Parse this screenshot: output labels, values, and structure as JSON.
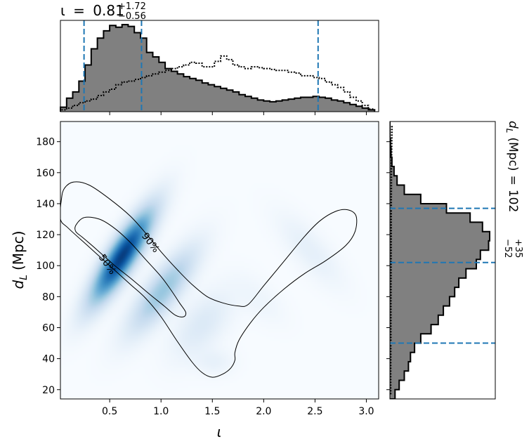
{
  "chart_data": {
    "type": "corner",
    "parameters": [
      {
        "name": "iota",
        "xlabel": "ι",
        "range": [
          0.02,
          3.12
        ]
      },
      {
        "name": "dL",
        "ylabel": "d",
        "ylabel_sub": "L",
        "ylabel_unit": "(Mpc)",
        "range": [
          14,
          193
        ]
      }
    ],
    "top_title": {
      "symbol": "ι",
      "eq": "=",
      "median": "0.81",
      "plus": "+1.72",
      "minus": "−0.56"
    },
    "right_title": {
      "symbol": "d",
      "sub": "L",
      "unit": "(Mpc)",
      "eq": "=",
      "median": "102",
      "plus": "+35",
      "minus": "−52"
    },
    "joint": {
      "type": "heatmap",
      "colormap": "Blues",
      "x_ticks": [
        "0.5",
        "1.0",
        "1.5",
        "2.0",
        "2.5",
        "3.0"
      ],
      "x_tick_values": [
        0.5,
        1.0,
        1.5,
        2.0,
        2.5,
        3.0
      ],
      "y_ticks": [
        "20",
        "40",
        "60",
        "80",
        "100",
        "120",
        "140",
        "160",
        "180"
      ],
      "y_tick_values": [
        20,
        40,
        60,
        80,
        100,
        120,
        140,
        160,
        180
      ],
      "contours": [
        {
          "label": "50%",
          "label_pos": [
            0.48,
            101
          ],
          "label_angle": 55,
          "points": [
            [
              0.17,
              126
            ],
            [
              0.25,
              131
            ],
            [
              0.4,
              130
            ],
            [
              0.55,
              124
            ],
            [
              0.7,
              115
            ],
            [
              0.85,
              104
            ],
            [
              1.0,
              93
            ],
            [
              1.1,
              84
            ],
            [
              1.18,
              76
            ],
            [
              1.24,
              70
            ],
            [
              1.22,
              67
            ],
            [
              1.14,
              68
            ],
            [
              1.03,
              74
            ],
            [
              0.88,
              82
            ],
            [
              0.72,
              91
            ],
            [
              0.55,
              100
            ],
            [
              0.38,
              110
            ],
            [
              0.24,
              118
            ],
            [
              0.17,
              122
            ]
          ]
        },
        {
          "label": "90%",
          "label_pos": [
            0.9,
            115
          ],
          "label_angle": 52,
          "points": [
            [
              0.03,
              143
            ],
            [
              0.06,
              150
            ],
            [
              0.15,
              154
            ],
            [
              0.3,
              152
            ],
            [
              0.5,
              143
            ],
            [
              0.7,
              132
            ],
            [
              0.85,
              121
            ],
            [
              1.0,
              109
            ],
            [
              1.15,
              98
            ],
            [
              1.3,
              88
            ],
            [
              1.45,
              80
            ],
            [
              1.6,
              76
            ],
            [
              1.75,
              74
            ],
            [
              1.85,
              75
            ],
            [
              2.0,
              87
            ],
            [
              2.2,
              103
            ],
            [
              2.4,
              119
            ],
            [
              2.55,
              129
            ],
            [
              2.7,
              135
            ],
            [
              2.82,
              136
            ],
            [
              2.9,
              132
            ],
            [
              2.89,
              122
            ],
            [
              2.8,
              113
            ],
            [
              2.6,
              103
            ],
            [
              2.4,
              95
            ],
            [
              2.2,
              85
            ],
            [
              2.0,
              73
            ],
            [
              1.87,
              63
            ],
            [
              1.76,
              52
            ],
            [
              1.72,
              44
            ],
            [
              1.72,
              39
            ],
            [
              1.68,
              34
            ],
            [
              1.6,
              30
            ],
            [
              1.5,
              28
            ],
            [
              1.4,
              31
            ],
            [
              1.3,
              38
            ],
            [
              1.15,
              52
            ],
            [
              1.0,
              67
            ],
            [
              0.85,
              79
            ],
            [
              0.7,
              88
            ],
            [
              0.5,
              100
            ],
            [
              0.3,
              112
            ],
            [
              0.1,
              124
            ],
            [
              0.02,
              130
            ]
          ]
        }
      ],
      "density_components": [
        {
          "weight": 1.0,
          "mean": [
            0.62,
            106
          ],
          "sd_major": 0.33,
          "sd_minor": 0.085,
          "angle_deg": -57
        },
        {
          "weight": 0.35,
          "mean": [
            1.02,
            84
          ],
          "sd_major": 0.32,
          "sd_minor": 0.1,
          "angle_deg": -52
        },
        {
          "weight": 0.1,
          "mean": [
            1.4,
            62
          ],
          "sd_major": 0.25,
          "sd_minor": 0.13,
          "angle_deg": -50
        },
        {
          "weight": 0.05,
          "mean": [
            1.52,
            38
          ],
          "sd_major": 0.12,
          "sd_minor": 0.08,
          "angle_deg": 0
        },
        {
          "weight": 0.06,
          "mean": [
            2.45,
            110
          ],
          "sd_major": 0.28,
          "sd_minor": 0.1,
          "angle_deg": 48
        },
        {
          "weight": 0.03,
          "mean": [
            1.95,
            78
          ],
          "sd_major": 0.2,
          "sd_minor": 0.1,
          "angle_deg": 40
        }
      ]
    },
    "marginal_x": {
      "type": "histogram",
      "bin_edges": [
        0.02,
        0.08,
        0.14,
        0.2,
        0.26,
        0.32,
        0.38,
        0.44,
        0.5,
        0.56,
        0.62,
        0.68,
        0.74,
        0.8,
        0.86,
        0.92,
        0.98,
        1.04,
        1.1,
        1.16,
        1.22,
        1.28,
        1.34,
        1.4,
        1.46,
        1.52,
        1.58,
        1.64,
        1.7,
        1.76,
        1.82,
        1.88,
        1.94,
        2.0,
        2.06,
        2.12,
        2.18,
        2.24,
        2.3,
        2.36,
        2.42,
        2.48,
        2.54,
        2.6,
        2.66,
        2.72,
        2.78,
        2.84,
        2.9,
        2.96,
        3.02,
        3.08
      ],
      "posterior": [
        0.05,
        0.15,
        0.22,
        0.34,
        0.52,
        0.7,
        0.82,
        0.9,
        0.96,
        0.94,
        0.97,
        0.95,
        0.88,
        0.82,
        0.66,
        0.61,
        0.55,
        0.48,
        0.45,
        0.42,
        0.39,
        0.37,
        0.35,
        0.32,
        0.3,
        0.28,
        0.26,
        0.24,
        0.22,
        0.19,
        0.17,
        0.15,
        0.13,
        0.12,
        0.11,
        0.12,
        0.13,
        0.14,
        0.15,
        0.16,
        0.16,
        0.17,
        0.16,
        0.15,
        0.13,
        0.12,
        0.1,
        0.08,
        0.06,
        0.04,
        0.02
      ],
      "prior": [
        0.02,
        0.04,
        0.07,
        0.1,
        0.12,
        0.14,
        0.18,
        0.22,
        0.25,
        0.3,
        0.33,
        0.34,
        0.36,
        0.38,
        0.4,
        0.42,
        0.44,
        0.46,
        0.48,
        0.5,
        0.52,
        0.55,
        0.54,
        0.5,
        0.5,
        0.56,
        0.62,
        0.58,
        0.52,
        0.5,
        0.48,
        0.5,
        0.49,
        0.48,
        0.47,
        0.46,
        0.46,
        0.44,
        0.43,
        0.4,
        0.4,
        0.38,
        0.37,
        0.33,
        0.3,
        0.27,
        0.22,
        0.16,
        0.12,
        0.07,
        0.03
      ],
      "quantile_lines": [
        0.25,
        0.81,
        2.53
      ]
    },
    "marginal_y": {
      "type": "histogram",
      "bin_edges": [
        14,
        20,
        26,
        32,
        38,
        44,
        50,
        56,
        62,
        68,
        74,
        80,
        86,
        92,
        98,
        104,
        110,
        116,
        122,
        128,
        134,
        140,
        146,
        152,
        158,
        164,
        170,
        176,
        182,
        188,
        194
      ],
      "posterior": [
        0.05,
        0.09,
        0.14,
        0.18,
        0.2,
        0.24,
        0.3,
        0.4,
        0.47,
        0.52,
        0.58,
        0.63,
        0.67,
        0.74,
        0.84,
        0.88,
        0.96,
        0.97,
        0.9,
        0.78,
        0.55,
        0.3,
        0.14,
        0.07,
        0.04,
        0.02,
        0.01,
        0.005,
        0.0,
        0.0
      ],
      "prior": [
        0.005,
        0.005,
        0.006,
        0.007,
        0.008,
        0.009,
        0.01,
        0.011,
        0.012,
        0.013,
        0.014,
        0.015,
        0.016,
        0.017,
        0.018,
        0.019,
        0.02,
        0.021,
        0.022,
        0.023,
        0.024,
        0.025,
        0.027,
        0.029,
        0.031,
        0.033,
        0.036,
        0.04,
        0.045,
        0.05
      ],
      "quantile_lines": [
        50,
        102,
        137
      ]
    },
    "colors": {
      "posterior_fill": "#808080",
      "posterior_edge": "#000000",
      "quantile": "#1f77b4",
      "contour": "#000000",
      "prior": "#000000",
      "heat_max": "#08306b"
    }
  }
}
